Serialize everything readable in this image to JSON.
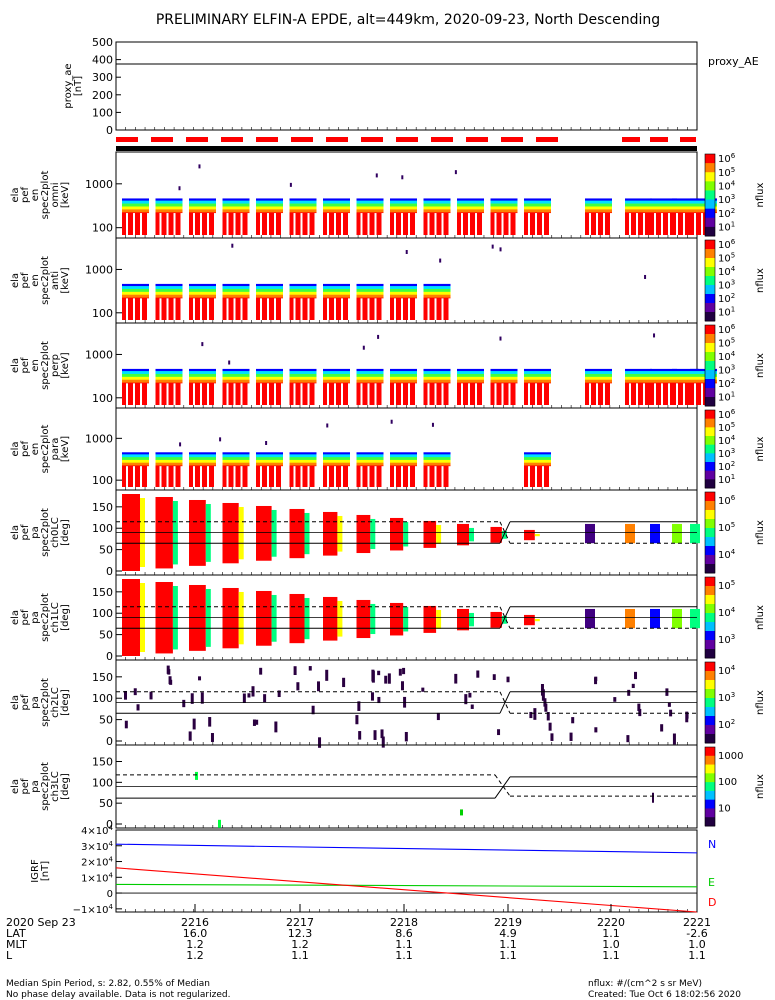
{
  "title": "PRELIMINARY ELFIN-A EPDE, alt=449km, 2020-09-23, North Descending",
  "colors": {
    "red": "#ff0000",
    "blue": "#0000ff",
    "green": "#00cc00",
    "black": "#000000"
  },
  "chart_data": [
    {
      "type": "line",
      "ylabel": [
        "proxy_ae",
        "[nT]"
      ],
      "ylim": [
        0,
        500
      ],
      "yticks": [
        "500",
        "400",
        "300",
        "200",
        "100",
        "0"
      ],
      "series": [
        {
          "name": "proxy_AE",
          "values": [
            375,
            375
          ]
        }
      ]
    },
    {
      "type": "heatmap",
      "ylabel": [
        "ela",
        "pef",
        "en",
        "spec2plot",
        "omni",
        "[keV]"
      ],
      "yticks": [
        "1000",
        "100"
      ],
      "colorbar": {
        "label": "nflux",
        "ticks": [
          "10^6",
          "10^5",
          "10^4",
          "10^3",
          "10^2",
          "10^1"
        ]
      }
    },
    {
      "type": "heatmap",
      "ylabel": [
        "ela",
        "pef",
        "en",
        "spec2plot",
        "anti",
        "[keV]"
      ],
      "yticks": [
        "1000",
        "100"
      ],
      "colorbar": {
        "label": "nflux",
        "ticks": [
          "10^6",
          "10^5",
          "10^4",
          "10^3",
          "10^2",
          "10^1"
        ]
      }
    },
    {
      "type": "heatmap",
      "ylabel": [
        "ela",
        "pef",
        "en",
        "spec2plot",
        "perp",
        "[keV]"
      ],
      "yticks": [
        "1000",
        "100"
      ],
      "colorbar": {
        "label": "nflux",
        "ticks": [
          "10^6",
          "10^5",
          "10^4",
          "10^3",
          "10^2",
          "10^1"
        ]
      }
    },
    {
      "type": "heatmap",
      "ylabel": [
        "ela",
        "pef",
        "en",
        "spec2plot",
        "para",
        "[keV]"
      ],
      "yticks": [
        "1000",
        "100"
      ],
      "colorbar": {
        "label": "nflux",
        "ticks": [
          "10^6",
          "10^5",
          "10^4",
          "10^3",
          "10^2",
          "10^1"
        ]
      }
    },
    {
      "type": "heatmap",
      "ylabel": [
        "ela",
        "pef",
        "pa",
        "spec2plot",
        "ch0LC",
        "[deg]"
      ],
      "yticks": [
        "150",
        "100",
        "50",
        "0"
      ],
      "colorbar": {
        "label": "nflux",
        "ticks": [
          "10^6",
          "10^5",
          "10^4"
        ]
      }
    },
    {
      "type": "heatmap",
      "ylabel": [
        "ela",
        "pef",
        "pa",
        "spec2plot",
        "ch1LC",
        "[deg]"
      ],
      "yticks": [
        "150",
        "100",
        "50",
        "0"
      ],
      "colorbar": {
        "label": "nflux",
        "ticks": [
          "10^5",
          "10^4",
          "10^3"
        ]
      }
    },
    {
      "type": "heatmap",
      "ylabel": [
        "ela",
        "pef",
        "pa",
        "spec2plot",
        "ch2LC",
        "[deg]"
      ],
      "yticks": [
        "150",
        "100",
        "50",
        "0"
      ],
      "colorbar": {
        "label": "nflux",
        "ticks": [
          "10^4",
          "10^3",
          "10^2"
        ]
      }
    },
    {
      "type": "heatmap",
      "ylabel": [
        "ela",
        "pef",
        "pa",
        "spec2plot",
        "ch3LC",
        "[deg]"
      ],
      "yticks": [
        "150",
        "100",
        "50",
        "0"
      ],
      "colorbar": {
        "label": "nflux",
        "ticks": [
          "1000",
          "100",
          "10"
        ]
      }
    },
    {
      "type": "line",
      "ylabel": [
        "IGRF",
        "[nT]"
      ],
      "yticks": [
        "4×10^4",
        "3×10^4",
        "2×10^4",
        "1×10^4",
        "0",
        "−1×10^4"
      ],
      "ylim": [
        -12000,
        40000
      ],
      "series": [
        {
          "name": "N",
          "color": "#0000ff",
          "values": [
            31000,
            25500
          ]
        },
        {
          "name": "E",
          "color": "#00cc00",
          "values": [
            5500,
            4000
          ]
        },
        {
          "name": "D",
          "color": "#ff0000",
          "values": [
            16000,
            -12000
          ]
        }
      ]
    }
  ],
  "xaxis": {
    "row_labels": [
      "2020 Sep 23",
      "LAT",
      "MLT",
      "L"
    ],
    "ticks": [
      {
        "time": "2216",
        "lat": "16.0",
        "mlt": "1.2",
        "l": "1.2"
      },
      {
        "time": "2217",
        "lat": "12.3",
        "mlt": "1.2",
        "l": "1.1"
      },
      {
        "time": "2218",
        "lat": "8.6",
        "mlt": "1.1",
        "l": "1.1"
      },
      {
        "time": "2219",
        "lat": "4.9",
        "mlt": "1.1",
        "l": "1.1"
      },
      {
        "time": "2220",
        "lat": "1.1",
        "mlt": "1.0",
        "l": "1.1"
      },
      {
        "time": "2221",
        "lat": "-2.6",
        "mlt": "1.0",
        "l": "1.1"
      }
    ]
  },
  "footer": {
    "left1": "Median Spin Period, s: 2.82, 0.55% of Median",
    "left2": "No phase delay available. Data is not regularized.",
    "right1": "nflux: #/(cm^2 s sr MeV)",
    "right2": "Created: Tue Oct  6 18:02:56 2020"
  }
}
